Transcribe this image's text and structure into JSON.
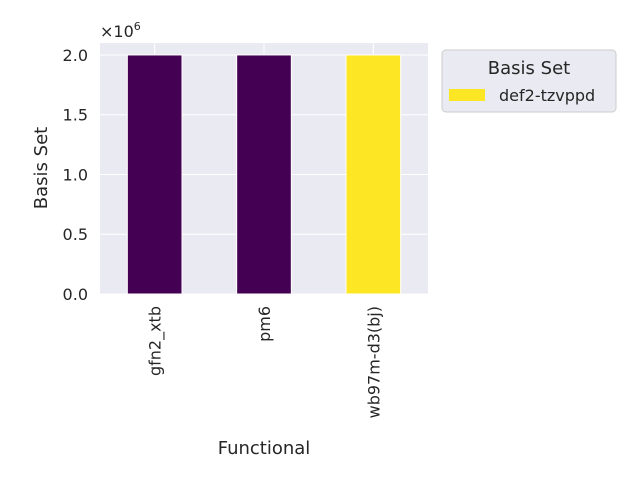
{
  "chart_data": {
    "type": "bar",
    "categories": [
      "gfn2_xtb",
      "pm6",
      "wb97m-d3(bj)"
    ],
    "values": [
      2000000,
      2000000,
      2000000
    ],
    "bar_colors": [
      "#440154",
      "#440154",
      "#fde725"
    ],
    "xlabel": "Functional",
    "ylabel": "Basis Set",
    "ylim": [
      0,
      2100000
    ],
    "yticks": [
      0,
      500000,
      1000000,
      1500000,
      2000000
    ],
    "ytick_labels": [
      "0.0",
      "0.5",
      "1.0",
      "1.5",
      "2.0"
    ],
    "offset_label": "×10",
    "offset_exponent": "6",
    "grid": true,
    "background": "#eaeaf2",
    "legend": {
      "title": "Basis Set",
      "placement": "outside-top-right",
      "entries": [
        {
          "label": "def2-tzvppd",
          "color": "#fde725"
        }
      ]
    }
  }
}
